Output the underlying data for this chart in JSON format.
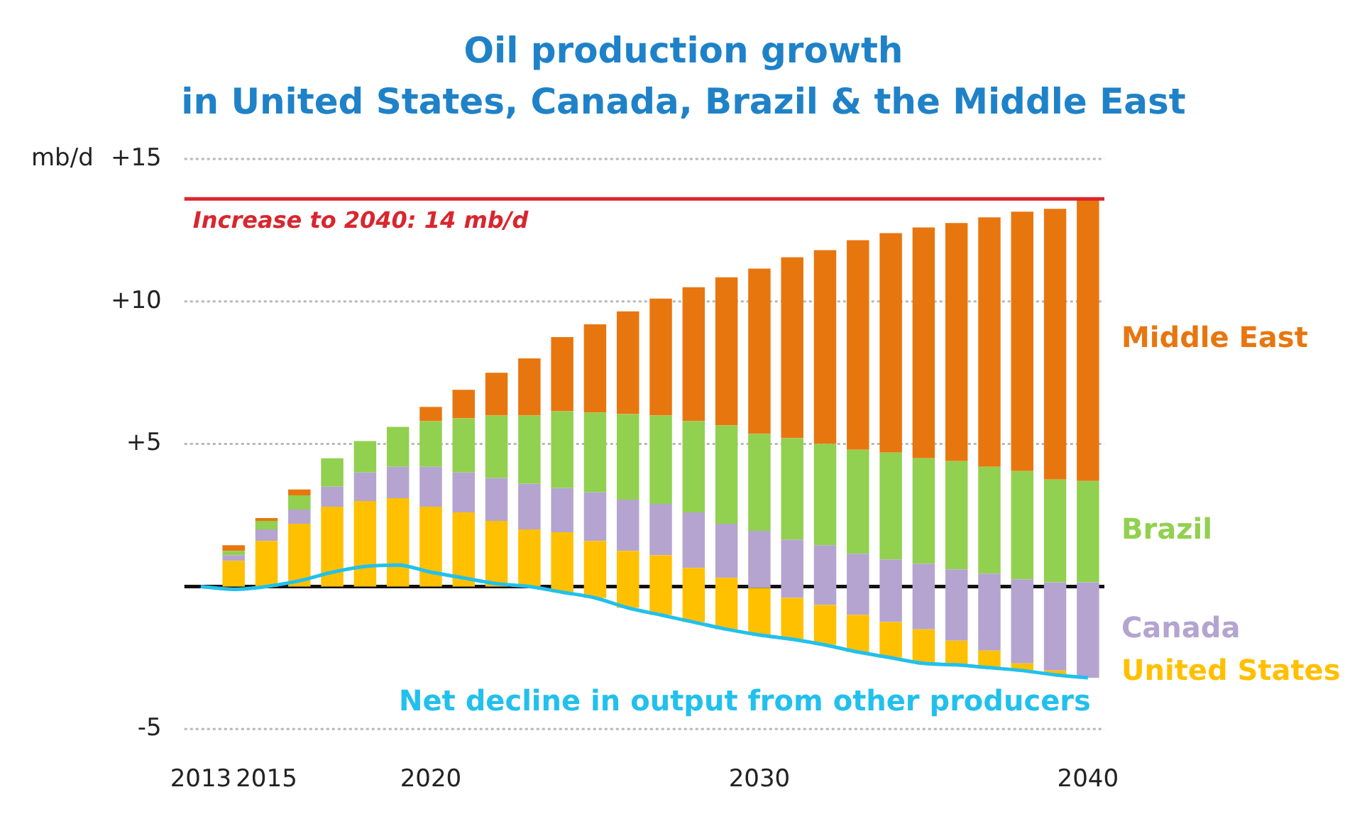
{
  "chart_data": {
    "type": "bar",
    "title": "Oil production growth\nin United States, Canada, Brazil & the Middle East",
    "ylabel": "mb/d",
    "categories": [
      "2013",
      null,
      "2015",
      null,
      null,
      null,
      null,
      "2020",
      null,
      null,
      null,
      null,
      null,
      null,
      null,
      null,
      null,
      "2030",
      null,
      null,
      null,
      null,
      null,
      null,
      null,
      null,
      null,
      "2040"
    ],
    "series": [
      {
        "name": "United States",
        "color": "#ffc000",
        "values": [
          null,
          0.9,
          1.6,
          2.2,
          2.8,
          3.0,
          3.1,
          2.8,
          2.6,
          2.3,
          2.0,
          2.1,
          2.0,
          2.0,
          2.1,
          1.9,
          1.8,
          1.65,
          1.45,
          1.4,
          1.3,
          1.25,
          1.2,
          0.85,
          0.6,
          0.25,
          0.15,
          null
        ],
        "base": [
          null,
          0,
          0,
          0,
          0,
          0,
          0,
          0,
          0,
          0,
          0,
          -0.2,
          -0.4,
          -0.75,
          -1.0,
          -1.25,
          -1.5,
          -1.7,
          -1.85,
          -2.05,
          -2.3,
          -2.5,
          -2.7,
          -2.75,
          -2.85,
          -2.95,
          -3.1,
          null
        ]
      },
      {
        "name": "Canada",
        "color": "#b4a4cf",
        "values": [
          null,
          0.2,
          0.4,
          0.5,
          0.7,
          1.0,
          1.1,
          1.4,
          1.4,
          1.5,
          1.6,
          1.55,
          1.7,
          1.8,
          1.8,
          1.95,
          1.9,
          2.0,
          2.05,
          2.1,
          2.15,
          2.2,
          2.3,
          2.5,
          2.7,
          2.95,
          3.1,
          3.35
        ],
        "base": [
          null,
          0.9,
          1.6,
          2.2,
          2.8,
          3.0,
          3.1,
          2.8,
          2.6,
          2.3,
          2.0,
          1.9,
          1.6,
          1.25,
          1.1,
          0.65,
          0.3,
          -0.05,
          -0.4,
          -0.65,
          -1.0,
          -1.25,
          -1.5,
          -1.9,
          -2.25,
          -2.7,
          -2.95,
          -3.2
        ]
      },
      {
        "name": "Brazil",
        "color": "#92d050",
        "values": [
          null,
          0.15,
          0.3,
          0.5,
          1.0,
          1.1,
          1.4,
          1.6,
          1.9,
          2.2,
          2.4,
          2.7,
          2.8,
          3.0,
          3.1,
          3.2,
          3.45,
          3.4,
          3.55,
          3.55,
          3.65,
          3.75,
          3.7,
          3.8,
          3.75,
          3.8,
          3.6,
          3.55
        ],
        "base": [
          null,
          1.1,
          2.0,
          2.7,
          3.5,
          4.0,
          4.2,
          4.2,
          4.0,
          3.8,
          3.6,
          3.45,
          3.3,
          3.05,
          2.9,
          2.6,
          2.2,
          1.95,
          1.65,
          1.45,
          1.15,
          0.95,
          0.8,
          0.6,
          0.45,
          0.25,
          0.15,
          0.15
        ]
      },
      {
        "name": "Middle East",
        "color": "#e8760f",
        "values": [
          null,
          0.2,
          0.1,
          0.2,
          null,
          null,
          null,
          0.5,
          1.0,
          1.5,
          2.0,
          2.6,
          3.1,
          3.6,
          4.1,
          4.7,
          5.2,
          5.8,
          6.35,
          6.8,
          7.35,
          7.7,
          8.1,
          8.35,
          8.75,
          9.1,
          9.5,
          9.9
        ],
        "base": [
          null,
          1.25,
          2.3,
          3.2,
          null,
          null,
          null,
          5.8,
          5.9,
          6.0,
          6.0,
          6.15,
          6.1,
          6.05,
          6.0,
          5.8,
          5.65,
          5.35,
          5.2,
          5.0,
          4.8,
          4.7,
          4.5,
          4.4,
          4.2,
          4.05,
          3.75,
          3.7
        ]
      },
      {
        "name": "Net decline in output from other producers",
        "type": "line",
        "color": "#22c0ec",
        "values": [
          0,
          -0.1,
          0,
          0.2,
          0.5,
          0.7,
          0.75,
          0.5,
          0.3,
          0.1,
          0,
          -0.2,
          -0.4,
          -0.75,
          -1.0,
          -1.25,
          -1.5,
          -1.7,
          -1.85,
          -2.05,
          -2.3,
          -2.5,
          -2.7,
          -2.75,
          -2.85,
          -2.95,
          -3.1,
          -3.2
        ]
      }
    ],
    "ylim": [
      -5,
      15
    ],
    "yticks": [
      -5,
      {
        "value": 0,
        "label": null
      },
      {
        "value": 5,
        "label": "+5"
      },
      {
        "value": 10,
        "label": "+10"
      },
      {
        "value": 15,
        "label": "+15"
      }
    ],
    "grid": "y",
    "ref_lines": [
      {
        "axis": "y",
        "value": 13.6,
        "label": "Increase to 2040: 14 mb/d",
        "color": "#d9262e"
      }
    ]
  }
}
